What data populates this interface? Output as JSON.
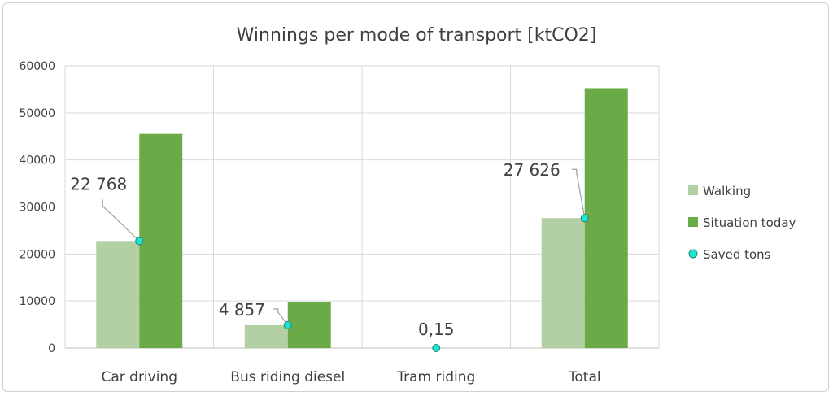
{
  "chart_data": {
    "type": "bar",
    "title": "Winnings per mode of transport [ktCO2]",
    "categories": [
      "Car driving",
      "Bus riding diesel",
      "Tram riding",
      "Total"
    ],
    "ylim": [
      0,
      60000
    ],
    "yticks": [
      "0",
      "10000",
      "20000",
      "30000",
      "40000",
      "50000",
      "60000"
    ],
    "ytick_values": [
      0,
      10000,
      20000,
      30000,
      40000,
      50000,
      60000
    ],
    "grid": true,
    "legend_position": "right",
    "series": [
      {
        "name": "Walking",
        "type": "bar",
        "color": "#b3cfa4",
        "values": [
          22768,
          4857,
          0.15,
          27626
        ]
      },
      {
        "name": "Situation today",
        "type": "bar",
        "color": "#6aab47",
        "values": [
          45536,
          9714,
          0.3,
          55252
        ]
      },
      {
        "name": "Saved tons",
        "type": "point",
        "color": "#19e6d3",
        "values": [
          22768,
          4857,
          0.15,
          27626
        ]
      }
    ],
    "data_labels": [
      "22 768",
      "4 857",
      "0,15",
      "27 626"
    ]
  }
}
